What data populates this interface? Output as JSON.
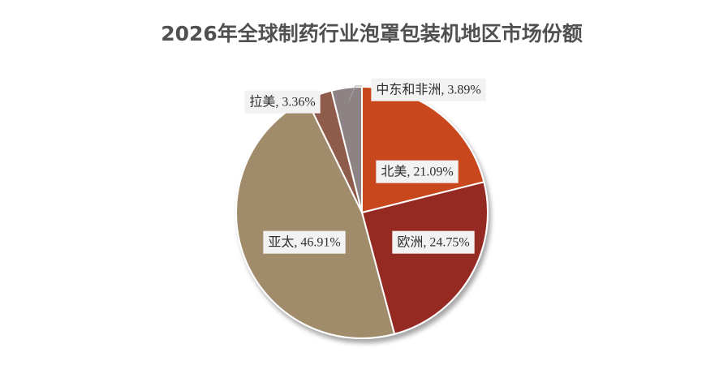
{
  "chart_data": {
    "type": "pie",
    "title": "2026年全球制药行业泡罩包装机地区市场份额",
    "categories": [
      "北美",
      "欧洲",
      "亚太",
      "拉美",
      "中东和非洲"
    ],
    "values": [
      21.09,
      24.75,
      46.91,
      3.36,
      3.89
    ],
    "value_labels": [
      "北美, 21.09%",
      "欧洲, 24.75%",
      "亚太, 46.91%",
      "拉美, 3.36%",
      "中东和非洲, 3.89%"
    ],
    "colors": [
      "#c8461b",
      "#952c21",
      "#a08c6b",
      "#8f5b4b",
      "#8d8384"
    ]
  }
}
